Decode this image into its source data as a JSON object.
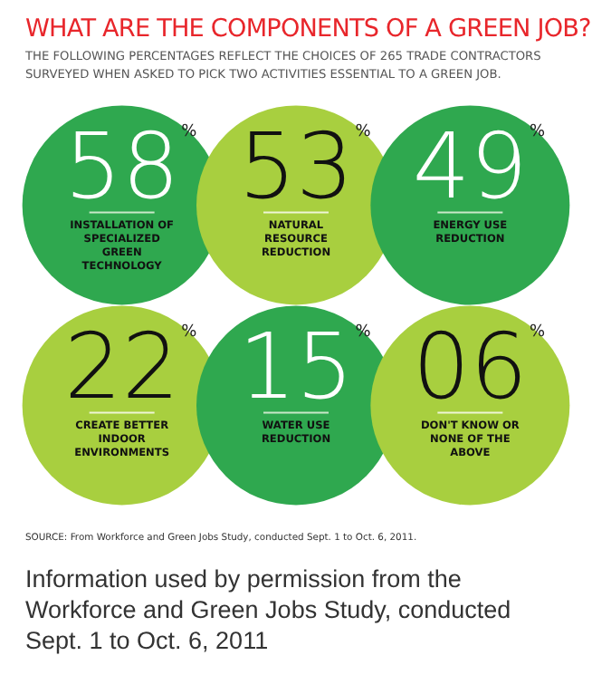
{
  "chart_data": {
    "type": "other",
    "title": "WHAT ARE THE COMPONENTS OF A GREEN JOB?",
    "subtitle": "THE FOLLOWING PERCENTAGES REFLECT THE CHOICES OF 265 TRADE CONTRACTORS SURVEYED WHEN ASKED TO PICK TWO ACTIVITIES ESSENTIAL TO A GREEN JOB.",
    "categories": [
      "INSTALLATION OF SPECIALIZED GREEN TECHNOLOGY",
      "NATURAL RESOURCE REDUCTION",
      "ENERGY USE REDUCTION",
      "CREATE BETTER INDOOR ENVIRONMENTS",
      "WATER USE REDUCTION",
      "DON'T KNOW OR NONE OF THE ABOVE"
    ],
    "values": [
      58,
      53,
      49,
      22,
      15,
      6
    ],
    "value_labels": [
      "58$^{%}$",
      "53$^{%}$",
      "49$^{%}$",
      "22$^{%}$",
      "15$^{%}$",
      "06$^{%}$"
    ],
    "colors": [
      "#2fa84f",
      "#a8cf3f",
      "#2fa84f",
      "#a8cf3f",
      "#2fa84f",
      "#a8cf3f"
    ],
    "annotations": [
      "SOURCE: From Workforce and Green Jobs Study, conducted Sept. 1 to Oct. 6, 2011.",
      "Information used by permission from the Workforce and Green Jobs Study, conducted Sept. 1 to Oct. 6, 2011"
    ]
  }
}
